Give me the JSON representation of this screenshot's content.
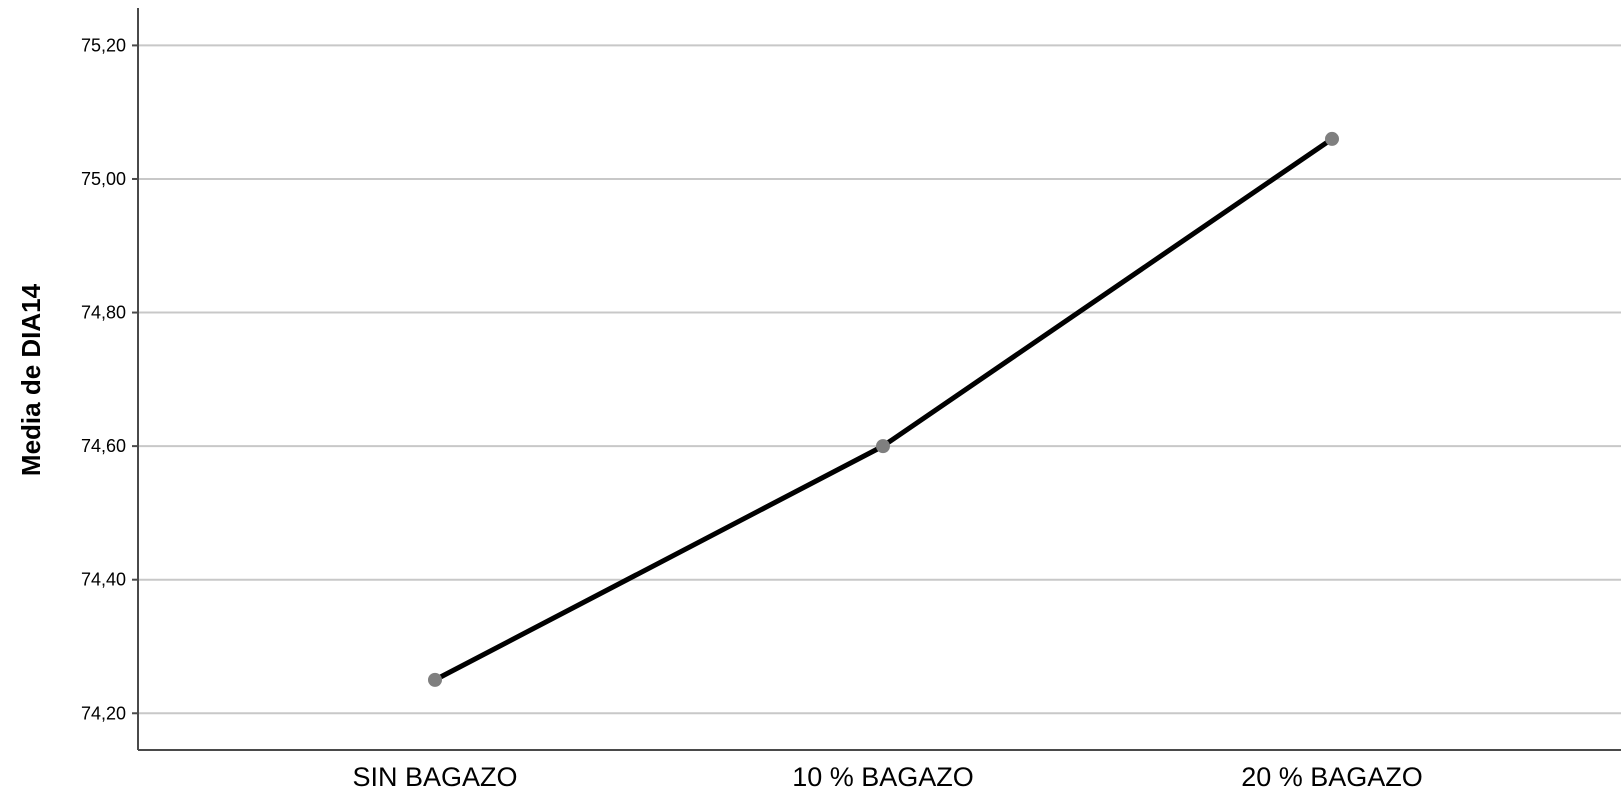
{
  "chart_data": {
    "type": "line",
    "title": "",
    "xlabel": "",
    "ylabel": "Media de DIA14",
    "categories": [
      "SIN BAGAZO",
      "10 % BAGAZO",
      "20 % BAGAZO"
    ],
    "series": [
      {
        "values": [
          74.25,
          74.6,
          75.06
        ]
      }
    ],
    "yticks": [
      74.2,
      74.4,
      74.6,
      74.8,
      75.0,
      75.2
    ],
    "ytick_labels": [
      "74,20",
      "74,40",
      "74,60",
      "74,80",
      "75,00",
      "75,20"
    ],
    "ylim": [
      74.145,
      75.256
    ],
    "grid": true,
    "legend": "none",
    "colors": {
      "line": "#000000",
      "marker": "#7f7f7f",
      "grid": "#c8c8c8",
      "axis": "#4a4a4a"
    }
  }
}
